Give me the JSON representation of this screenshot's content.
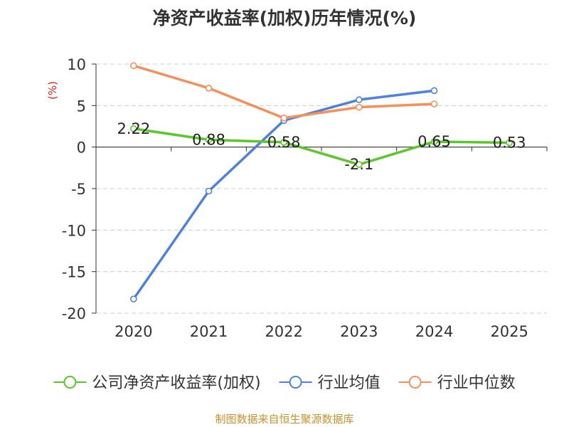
{
  "chart_data": {
    "type": "line",
    "title": "净资产收益率(加权)历年情况(%)",
    "ylabel": "(%)",
    "xlabel": "",
    "categories": [
      "2020",
      "2021",
      "2022",
      "2023",
      "2024",
      "2025"
    ],
    "ylim": [
      -20,
      10
    ],
    "yticks": [
      10,
      5,
      0,
      -5,
      -10,
      -15,
      -20
    ],
    "grid": true,
    "legend_position": "bottom",
    "series": [
      {
        "name": "公司净资产收益率(加权)",
        "color": "#5cc72b",
        "values": [
          2.22,
          0.88,
          0.58,
          -2.1,
          0.65,
          0.53
        ],
        "labels": [
          "2.22",
          "0.88",
          "0.58",
          "-2.1",
          "0.65",
          "0.53"
        ]
      },
      {
        "name": "行业均值",
        "color": "#4f82dc",
        "values": [
          -18.3,
          -5.3,
          3.2,
          5.7,
          6.8,
          null
        ]
      },
      {
        "name": "行业中位数",
        "color": "#f5905a",
        "values": [
          9.8,
          7.1,
          3.5,
          4.8,
          5.2,
          null
        ]
      }
    ]
  },
  "source_note": "制图数据来自恒生聚源数据库"
}
